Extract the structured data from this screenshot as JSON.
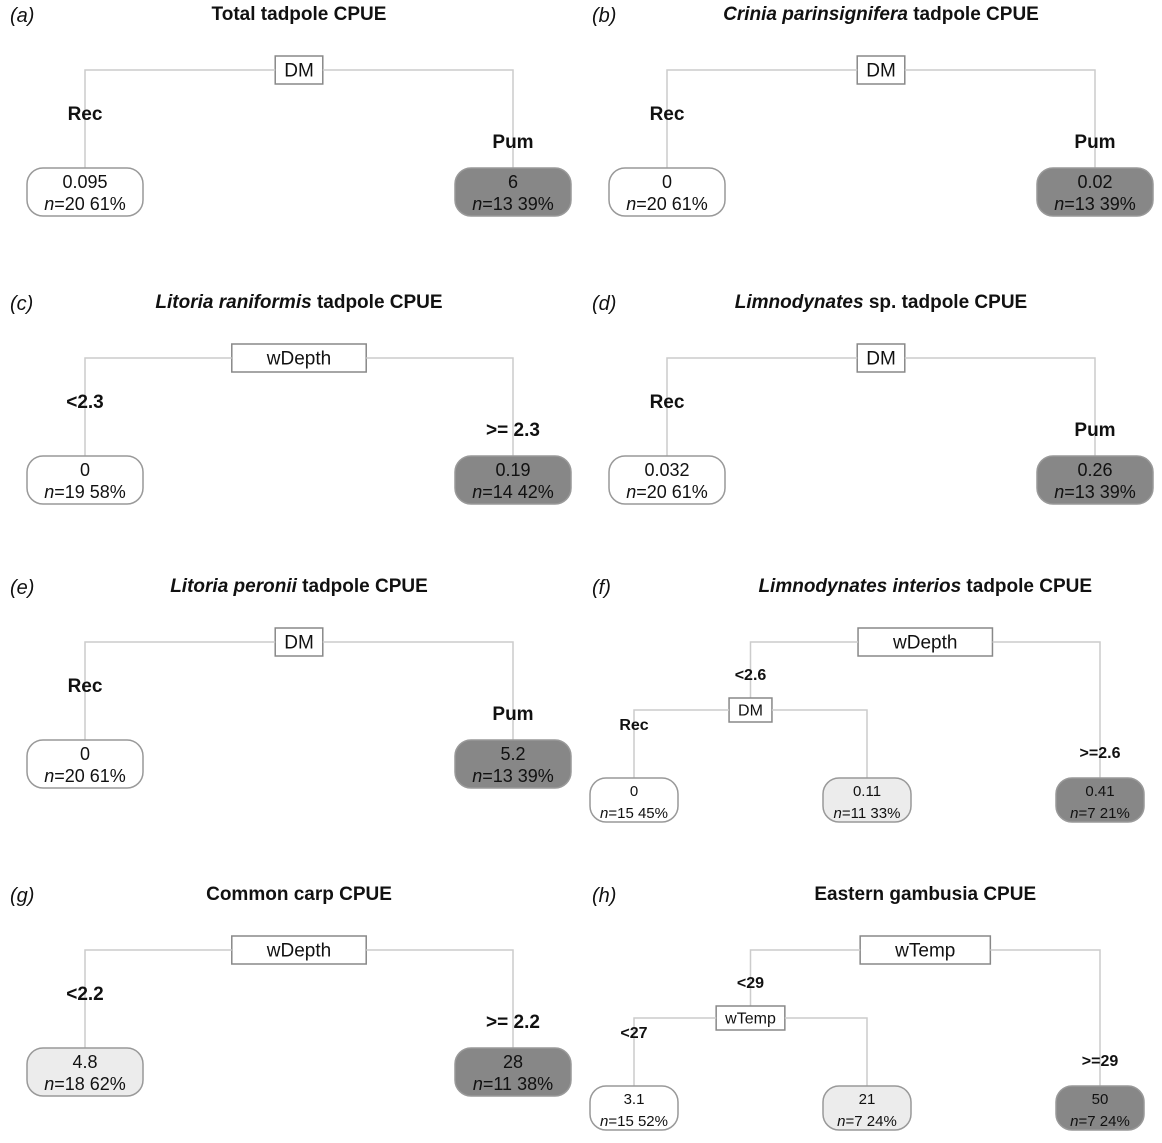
{
  "panels": [
    {
      "label": "(a)",
      "title": [
        {
          "text": "Total tadpole CPUE"
        }
      ],
      "tree": {
        "split": "DM",
        "left": {
          "branch": "Rec",
          "value": "0.095",
          "n": "n",
          "count": "=20",
          "percent": "61%",
          "shade": "white"
        },
        "right": {
          "branch": "Pum",
          "value": "6",
          "n": "n",
          "count": "=13",
          "percent": "39%",
          "shade": "dark"
        }
      }
    },
    {
      "label": "(b)",
      "title": [
        {
          "text": "Crinia parinsignifera",
          "italic": true
        },
        {
          "text": " tadpole CPUE"
        }
      ],
      "tree": {
        "split": "DM",
        "left": {
          "branch": "Rec",
          "value": "0",
          "n": "n",
          "count": "=20",
          "percent": "61%",
          "shade": "white"
        },
        "right": {
          "branch": "Pum",
          "value": "0.02",
          "n": "n",
          "count": "=13",
          "percent": "39%",
          "shade": "dark"
        }
      }
    },
    {
      "label": "(c)",
      "title": [
        {
          "text": "Litoria raniformis",
          "italic": true
        },
        {
          "text": " tadpole CPUE"
        }
      ],
      "tree": {
        "split": "wDepth",
        "left": {
          "branch": "<2.3",
          "value": "0",
          "n": "n",
          "count": "=19",
          "percent": "58%",
          "shade": "white"
        },
        "right": {
          "branch": ">= 2.3",
          "value": "0.19",
          "n": "n",
          "count": "=14",
          "percent": "42%",
          "shade": "dark"
        }
      }
    },
    {
      "label": "(d)",
      "title": [
        {
          "text": "Limnodynates",
          "italic": true
        },
        {
          "text": " sp. tadpole CPUE"
        }
      ],
      "tree": {
        "split": "DM",
        "left": {
          "branch": "Rec",
          "value": "0.032",
          "n": "n",
          "count": "=20",
          "percent": "61%",
          "shade": "white"
        },
        "right": {
          "branch": "Pum",
          "value": "0.26",
          "n": "n",
          "count": "=13",
          "percent": "39%",
          "shade": "dark"
        }
      }
    },
    {
      "label": "(e)",
      "title": [
        {
          "text": "Litoria peronii",
          "italic": true
        },
        {
          "text": " tadpole CPUE"
        }
      ],
      "tree": {
        "split": "DM",
        "left": {
          "branch": "Rec",
          "value": "0",
          "n": "n",
          "count": "=20",
          "percent": "61%",
          "shade": "white"
        },
        "right": {
          "branch": "Pum",
          "value": "5.2",
          "n": "n",
          "count": "=13",
          "percent": "39%",
          "shade": "dark"
        }
      }
    },
    {
      "label": "(f)",
      "title": [
        {
          "text": "Limnodynates interios",
          "italic": true
        },
        {
          "text": " tadpole CPUE"
        }
      ],
      "tree": {
        "split": "wDepth",
        "left": {
          "branch": "<2.6",
          "split": "DM",
          "left": {
            "branch": "Rec",
            "value": "0",
            "n": "n",
            "count": "=15",
            "percent": "45%",
            "shade": "white"
          },
          "right": {
            "value": "0.11",
            "n": "n",
            "count": "=11",
            "percent": "33%",
            "shade": "light"
          }
        },
        "right": {
          "branch": ">=2.6",
          "value": "0.41",
          "n": "n",
          "count": "=7",
          "percent": "21%",
          "shade": "dark"
        }
      }
    },
    {
      "label": "(g)",
      "title": [
        {
          "text": "Common carp CPUE"
        }
      ],
      "tree": {
        "split": "wDepth",
        "left": {
          "branch": "<2.2",
          "value": "4.8",
          "n": "n",
          "count": "=18",
          "percent": "62%",
          "shade": "light"
        },
        "right": {
          "branch": ">= 2.2",
          "value": "28",
          "n": "n",
          "count": "=11",
          "percent": "38%",
          "shade": "dark"
        }
      }
    },
    {
      "label": "(h)",
      "title": [
        {
          "text": "Eastern gambusia CPUE"
        }
      ],
      "tree": {
        "split": "wTemp",
        "left": {
          "branch": "<29",
          "split": "wTemp",
          "left": {
            "branch": "<27",
            "value": "3.1",
            "n": "n",
            "count": "=15",
            "percent": "52%",
            "shade": "white"
          },
          "right": {
            "value": "21",
            "n": "n",
            "count": "=7",
            "percent": "24%",
            "shade": "light"
          }
        },
        "right": {
          "branch": ">=29",
          "value": "50",
          "n": "n",
          "count": "=7",
          "percent": "24%",
          "shade": "dark"
        }
      }
    }
  ]
}
